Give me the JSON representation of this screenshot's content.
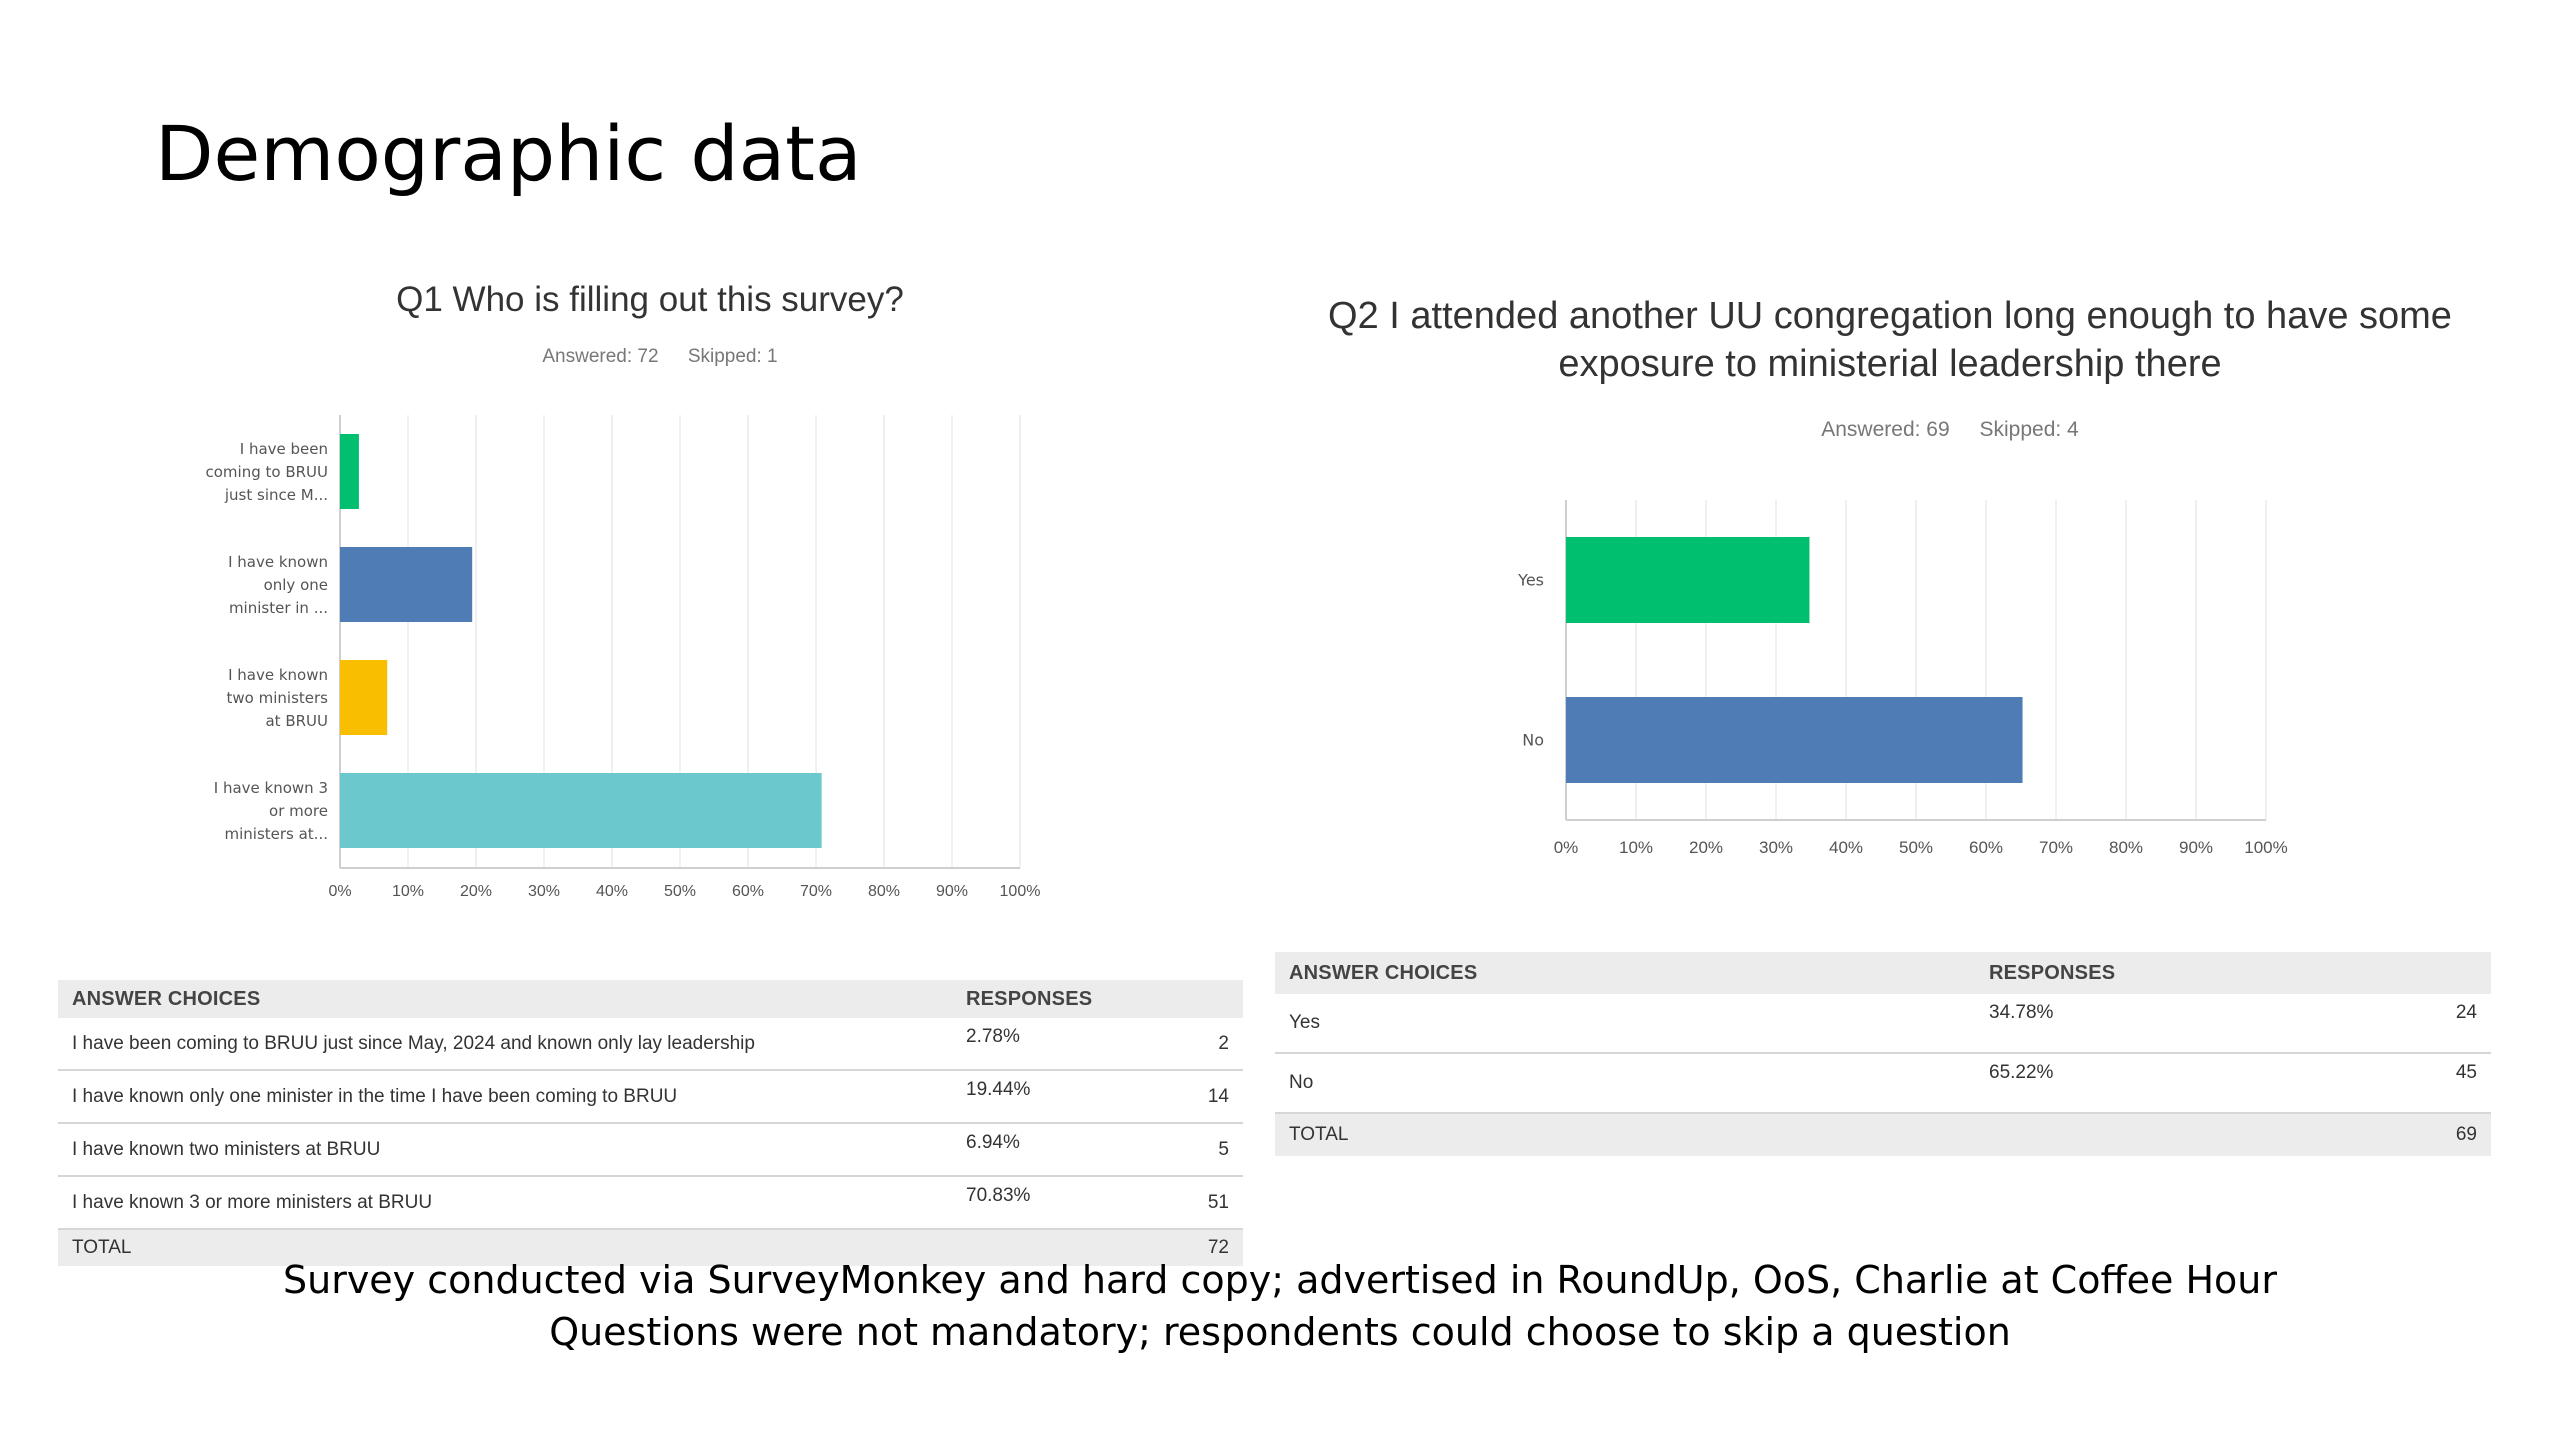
{
  "slide": {
    "title": "Demographic data",
    "footer_line1": "Survey conducted via SurveyMonkey and hard copy; advertised in RoundUp, OoS, Charlie at Coffee Hour",
    "footer_line2": "Questions were not mandatory; respondents could choose to skip a question"
  },
  "q1": {
    "answered": "Answered: 72",
    "skipped": "Skipped: 1",
    "table": {
      "col_choices": "ANSWER CHOICES",
      "col_responses": "RESPONSES",
      "rows": [
        {
          "choice": "I have been coming to BRUU just since May, 2024 and known only lay leadership",
          "pct": "2.78%",
          "count": "2"
        },
        {
          "choice": "I have known only one minister in the time I have been coming to BRUU",
          "pct": "19.44%",
          "count": "14"
        },
        {
          "choice": "I have known two ministers at BRUU",
          "pct": "6.94%",
          "count": "5"
        },
        {
          "choice": "I have known 3 or more ministers at BRUU",
          "pct": "70.83%",
          "count": "51"
        }
      ],
      "total_label": "TOTAL",
      "total_count": "72"
    }
  },
  "q2": {
    "answered": "Answered: 69",
    "skipped": "Skipped: 4",
    "table": {
      "col_choices": "ANSWER CHOICES",
      "col_responses": "RESPONSES",
      "rows": [
        {
          "choice": "Yes",
          "pct": "34.78%",
          "count": "24"
        },
        {
          "choice": "No",
          "pct": "65.22%",
          "count": "45"
        }
      ],
      "total_label": "TOTAL",
      "total_count": "69"
    }
  },
  "chart_data": [
    {
      "type": "bar",
      "orientation": "horizontal",
      "title": "Q1 Who is filling out this survey?",
      "categories": [
        [
          "I have been",
          "coming to BRUU",
          "just since M..."
        ],
        [
          "I have known",
          "only one",
          "minister in ..."
        ],
        [
          "I have known",
          "two ministers",
          "at BRUU"
        ],
        [
          "I have known 3",
          "or more",
          "ministers at..."
        ]
      ],
      "values": [
        2.78,
        19.44,
        6.94,
        70.83
      ],
      "colors": [
        "#00bf6f",
        "#507cb6",
        "#f9be00",
        "#6bc8cd"
      ],
      "xlim": [
        0,
        100
      ],
      "xticks": [
        "0%",
        "10%",
        "20%",
        "30%",
        "40%",
        "50%",
        "60%",
        "70%",
        "80%",
        "90%",
        "100%"
      ],
      "grid": true
    },
    {
      "type": "bar",
      "orientation": "horizontal",
      "title": "Q2 I attended another UU congregation long enough to have some exposure to ministerial leadership there",
      "categories": [
        [
          "Yes"
        ],
        [
          "No"
        ]
      ],
      "values": [
        34.78,
        65.22
      ],
      "colors": [
        "#00bf6f",
        "#507cb6"
      ],
      "xlim": [
        0,
        100
      ],
      "xticks": [
        "0%",
        "10%",
        "20%",
        "30%",
        "40%",
        "50%",
        "60%",
        "70%",
        "80%",
        "90%",
        "100%"
      ],
      "grid": true
    }
  ]
}
